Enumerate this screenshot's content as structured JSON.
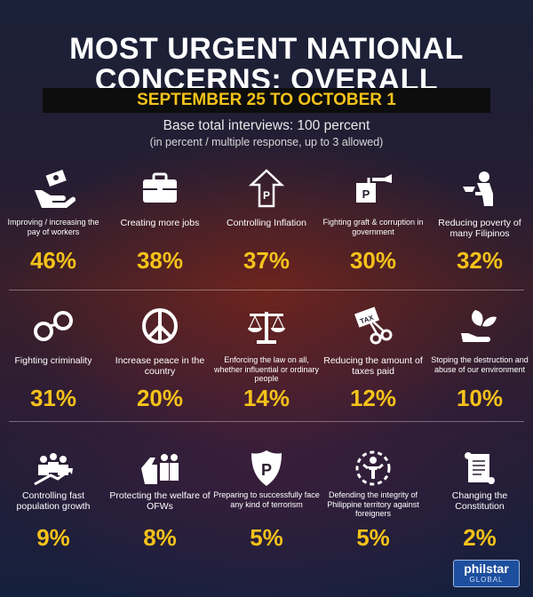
{
  "title_line1": "MOST URGENT NATIONAL",
  "title_line2": "CONCERNS: OVERALL",
  "date_range": "SEPTEMBER 25 TO OCTOBER 1",
  "base_text": "Base total interviews: 100 percent",
  "note_text": "(in percent / multiple response, up to 3 allowed)",
  "accent_color": "#f5c21a",
  "rows": [
    [
      {
        "icon": "money-hand-icon",
        "label": "Improving / increasing the pay of workers",
        "value": "46%"
      },
      {
        "icon": "briefcase-icon",
        "label": "Creating more jobs",
        "value": "38%"
      },
      {
        "icon": "peso-up-arrow-icon",
        "label": "Controlling Inflation",
        "value": "37%"
      },
      {
        "icon": "peso-bag-hand-icon",
        "label": "Fighting graft & corruption in government",
        "value": "30%"
      },
      {
        "icon": "begging-person-icon",
        "label": "Reducing poverty of many Filipinos",
        "value": "32%"
      }
    ],
    [
      {
        "icon": "handcuffs-icon",
        "label": "Fighting criminality",
        "value": "31%"
      },
      {
        "icon": "peace-sign-icon",
        "label": "Increase peace in the country",
        "value": "20%"
      },
      {
        "icon": "scales-of-justice-icon",
        "label": "Enforcing the law on all, whether influential or ordinary people",
        "value": "14%"
      },
      {
        "icon": "tax-scissors-icon",
        "label": "Reducing the amount of taxes paid",
        "value": "12%"
      },
      {
        "icon": "leaf-hand-icon",
        "label": "Stoping the destruction and abuse of our environment",
        "value": "10%"
      }
    ],
    [
      {
        "icon": "population-growth-icon",
        "label": "Controlling fast population growth",
        "value": "9%"
      },
      {
        "icon": "protecting-people-hand-icon",
        "label": "Protecting the welfare of OFWs",
        "value": "8%"
      },
      {
        "icon": "police-badge-icon",
        "label": "Preparing to successfully face any kind of terrorism",
        "value": "5%"
      },
      {
        "icon": "defending-territory-icon",
        "label": "Defending the integrity of Philippine territory against foreigners",
        "value": "5%"
      },
      {
        "icon": "constitution-scroll-icon",
        "label": "Changing the Constitution",
        "value": "2%"
      }
    ]
  ],
  "logo_main": "philstar",
  "logo_sub": "GLOBAL"
}
